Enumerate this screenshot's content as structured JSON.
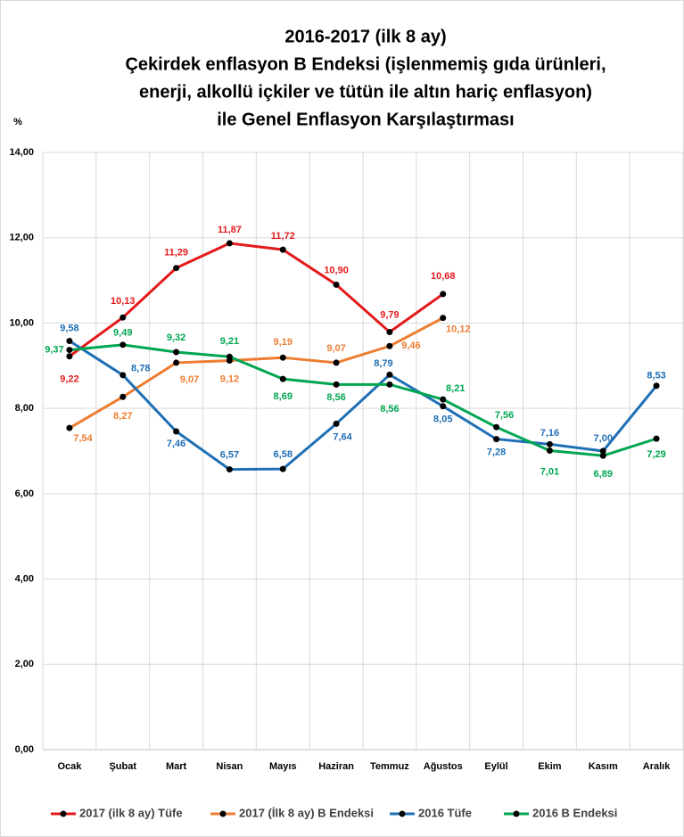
{
  "chart_data": {
    "type": "line",
    "title": [
      "2016-2017 (ilk 8 ay)",
      "Çekirdek enflasyon B Endeksi (işlenmemiş gıda ürünleri,",
      "enerji, alkollü içkiler ve tütün ile altın hariç enflasyon)",
      "ile Genel Enflasyon Karşılaştırması"
    ],
    "y_label": "%",
    "categories": [
      "Ocak",
      "Şubat",
      "Mart",
      "Nisan",
      "Mayıs",
      "Haziran",
      "Temmuz",
      "Ağustos",
      "Eylül",
      "Ekim",
      "Kasım",
      "Aralık"
    ],
    "ylim": [
      0,
      14
    ],
    "yticks": [
      {
        "value": 0,
        "label": "0,00"
      },
      {
        "value": 2,
        "label": "2,00"
      },
      {
        "value": 4,
        "label": "4,00"
      },
      {
        "value": 6,
        "label": "6,00"
      },
      {
        "value": 8,
        "label": "8,00"
      },
      {
        "value": 10,
        "label": "10,00"
      },
      {
        "value": 12,
        "label": "12,00"
      },
      {
        "value": 14,
        "label": "14,00"
      }
    ],
    "grid": true,
    "legend": "bottom",
    "marker_color": "#000000",
    "series": [
      {
        "name": "2017 (ilk 8 ay) Tüfe",
        "color": "#e31a1c",
        "values": [
          9.22,
          10.13,
          11.29,
          11.87,
          11.72,
          10.9,
          9.79,
          10.68,
          null,
          null,
          null,
          null
        ],
        "value_labels": [
          "9,22",
          "10,13",
          "11,29",
          "11,87",
          "11,72",
          "10,90",
          "9,79",
          "10,68",
          null,
          null,
          null,
          null
        ]
      },
      {
        "name": "2017 (İlk 8 ay) B Endeksi",
        "color": "#ed7d31",
        "values": [
          7.54,
          8.27,
          9.07,
          9.12,
          9.19,
          9.07,
          9.46,
          10.12,
          null,
          null,
          null,
          null
        ],
        "value_labels": [
          "7,54",
          "8,27",
          "9,07",
          "9,12",
          "9,19",
          "9,07",
          "9,46",
          "10,12",
          null,
          null,
          null,
          null
        ]
      },
      {
        "name": "2016 Tüfe",
        "color": "#1f6fb5",
        "values": [
          9.58,
          8.78,
          7.46,
          6.57,
          6.58,
          7.64,
          8.79,
          8.05,
          7.28,
          7.16,
          7.0,
          8.53
        ],
        "value_labels": [
          "9,58",
          "8,78",
          "7,46",
          "6,57",
          "6,58",
          "7,64",
          "8,79",
          "8,05",
          "7,28",
          "7,16",
          "7,00",
          "8,53"
        ]
      },
      {
        "name": "2016 B Endeksi",
        "color": "#00a651",
        "values": [
          9.37,
          9.49,
          9.32,
          9.21,
          8.69,
          8.56,
          8.56,
          8.21,
          7.56,
          7.01,
          6.89,
          7.29
        ],
        "value_labels": [
          "9,37",
          "9,49",
          "9,32",
          "9,21",
          "8,69",
          "8,56",
          "8,56",
          "8,21",
          "7,56",
          "7,01",
          "6,89",
          "7,29"
        ]
      }
    ]
  }
}
